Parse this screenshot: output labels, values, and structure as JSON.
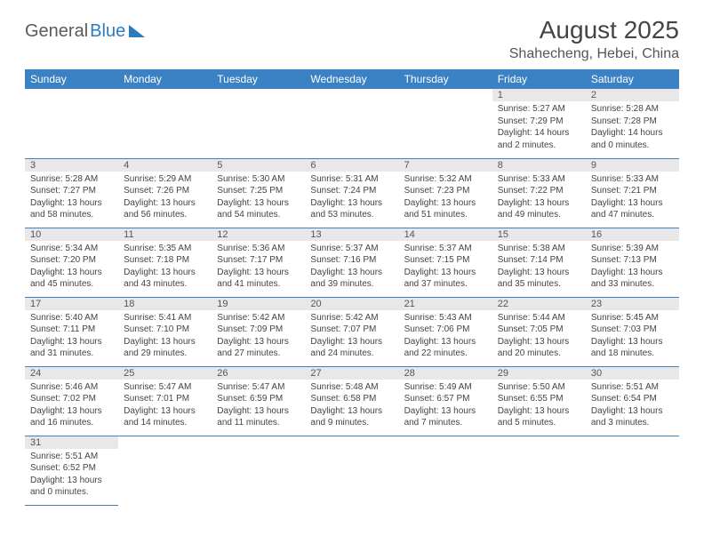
{
  "logo": {
    "text1": "General",
    "text2": "Blue"
  },
  "title": "August 2025",
  "location": "Shahecheng, Hebei, China",
  "headers": [
    "Sunday",
    "Monday",
    "Tuesday",
    "Wednesday",
    "Thursday",
    "Friday",
    "Saturday"
  ],
  "colors": {
    "header_bg": "#3b82c4",
    "header_fg": "#ffffff",
    "daynum_bg": "#e8e8e8",
    "border": "#3b82c4",
    "text": "#444444"
  },
  "weeks": [
    [
      null,
      null,
      null,
      null,
      null,
      {
        "num": "1",
        "sunrise": "Sunrise: 5:27 AM",
        "sunset": "Sunset: 7:29 PM",
        "daylight": "Daylight: 14 hours and 2 minutes."
      },
      {
        "num": "2",
        "sunrise": "Sunrise: 5:28 AM",
        "sunset": "Sunset: 7:28 PM",
        "daylight": "Daylight: 14 hours and 0 minutes."
      }
    ],
    [
      {
        "num": "3",
        "sunrise": "Sunrise: 5:28 AM",
        "sunset": "Sunset: 7:27 PM",
        "daylight": "Daylight: 13 hours and 58 minutes."
      },
      {
        "num": "4",
        "sunrise": "Sunrise: 5:29 AM",
        "sunset": "Sunset: 7:26 PM",
        "daylight": "Daylight: 13 hours and 56 minutes."
      },
      {
        "num": "5",
        "sunrise": "Sunrise: 5:30 AM",
        "sunset": "Sunset: 7:25 PM",
        "daylight": "Daylight: 13 hours and 54 minutes."
      },
      {
        "num": "6",
        "sunrise": "Sunrise: 5:31 AM",
        "sunset": "Sunset: 7:24 PM",
        "daylight": "Daylight: 13 hours and 53 minutes."
      },
      {
        "num": "7",
        "sunrise": "Sunrise: 5:32 AM",
        "sunset": "Sunset: 7:23 PM",
        "daylight": "Daylight: 13 hours and 51 minutes."
      },
      {
        "num": "8",
        "sunrise": "Sunrise: 5:33 AM",
        "sunset": "Sunset: 7:22 PM",
        "daylight": "Daylight: 13 hours and 49 minutes."
      },
      {
        "num": "9",
        "sunrise": "Sunrise: 5:33 AM",
        "sunset": "Sunset: 7:21 PM",
        "daylight": "Daylight: 13 hours and 47 minutes."
      }
    ],
    [
      {
        "num": "10",
        "sunrise": "Sunrise: 5:34 AM",
        "sunset": "Sunset: 7:20 PM",
        "daylight": "Daylight: 13 hours and 45 minutes."
      },
      {
        "num": "11",
        "sunrise": "Sunrise: 5:35 AM",
        "sunset": "Sunset: 7:18 PM",
        "daylight": "Daylight: 13 hours and 43 minutes."
      },
      {
        "num": "12",
        "sunrise": "Sunrise: 5:36 AM",
        "sunset": "Sunset: 7:17 PM",
        "daylight": "Daylight: 13 hours and 41 minutes."
      },
      {
        "num": "13",
        "sunrise": "Sunrise: 5:37 AM",
        "sunset": "Sunset: 7:16 PM",
        "daylight": "Daylight: 13 hours and 39 minutes."
      },
      {
        "num": "14",
        "sunrise": "Sunrise: 5:37 AM",
        "sunset": "Sunset: 7:15 PM",
        "daylight": "Daylight: 13 hours and 37 minutes."
      },
      {
        "num": "15",
        "sunrise": "Sunrise: 5:38 AM",
        "sunset": "Sunset: 7:14 PM",
        "daylight": "Daylight: 13 hours and 35 minutes."
      },
      {
        "num": "16",
        "sunrise": "Sunrise: 5:39 AM",
        "sunset": "Sunset: 7:13 PM",
        "daylight": "Daylight: 13 hours and 33 minutes."
      }
    ],
    [
      {
        "num": "17",
        "sunrise": "Sunrise: 5:40 AM",
        "sunset": "Sunset: 7:11 PM",
        "daylight": "Daylight: 13 hours and 31 minutes."
      },
      {
        "num": "18",
        "sunrise": "Sunrise: 5:41 AM",
        "sunset": "Sunset: 7:10 PM",
        "daylight": "Daylight: 13 hours and 29 minutes."
      },
      {
        "num": "19",
        "sunrise": "Sunrise: 5:42 AM",
        "sunset": "Sunset: 7:09 PM",
        "daylight": "Daylight: 13 hours and 27 minutes."
      },
      {
        "num": "20",
        "sunrise": "Sunrise: 5:42 AM",
        "sunset": "Sunset: 7:07 PM",
        "daylight": "Daylight: 13 hours and 24 minutes."
      },
      {
        "num": "21",
        "sunrise": "Sunrise: 5:43 AM",
        "sunset": "Sunset: 7:06 PM",
        "daylight": "Daylight: 13 hours and 22 minutes."
      },
      {
        "num": "22",
        "sunrise": "Sunrise: 5:44 AM",
        "sunset": "Sunset: 7:05 PM",
        "daylight": "Daylight: 13 hours and 20 minutes."
      },
      {
        "num": "23",
        "sunrise": "Sunrise: 5:45 AM",
        "sunset": "Sunset: 7:03 PM",
        "daylight": "Daylight: 13 hours and 18 minutes."
      }
    ],
    [
      {
        "num": "24",
        "sunrise": "Sunrise: 5:46 AM",
        "sunset": "Sunset: 7:02 PM",
        "daylight": "Daylight: 13 hours and 16 minutes."
      },
      {
        "num": "25",
        "sunrise": "Sunrise: 5:47 AM",
        "sunset": "Sunset: 7:01 PM",
        "daylight": "Daylight: 13 hours and 14 minutes."
      },
      {
        "num": "26",
        "sunrise": "Sunrise: 5:47 AM",
        "sunset": "Sunset: 6:59 PM",
        "daylight": "Daylight: 13 hours and 11 minutes."
      },
      {
        "num": "27",
        "sunrise": "Sunrise: 5:48 AM",
        "sunset": "Sunset: 6:58 PM",
        "daylight": "Daylight: 13 hours and 9 minutes."
      },
      {
        "num": "28",
        "sunrise": "Sunrise: 5:49 AM",
        "sunset": "Sunset: 6:57 PM",
        "daylight": "Daylight: 13 hours and 7 minutes."
      },
      {
        "num": "29",
        "sunrise": "Sunrise: 5:50 AM",
        "sunset": "Sunset: 6:55 PM",
        "daylight": "Daylight: 13 hours and 5 minutes."
      },
      {
        "num": "30",
        "sunrise": "Sunrise: 5:51 AM",
        "sunset": "Sunset: 6:54 PM",
        "daylight": "Daylight: 13 hours and 3 minutes."
      }
    ],
    [
      {
        "num": "31",
        "sunrise": "Sunrise: 5:51 AM",
        "sunset": "Sunset: 6:52 PM",
        "daylight": "Daylight: 13 hours and 0 minutes."
      },
      null,
      null,
      null,
      null,
      null,
      null
    ]
  ]
}
